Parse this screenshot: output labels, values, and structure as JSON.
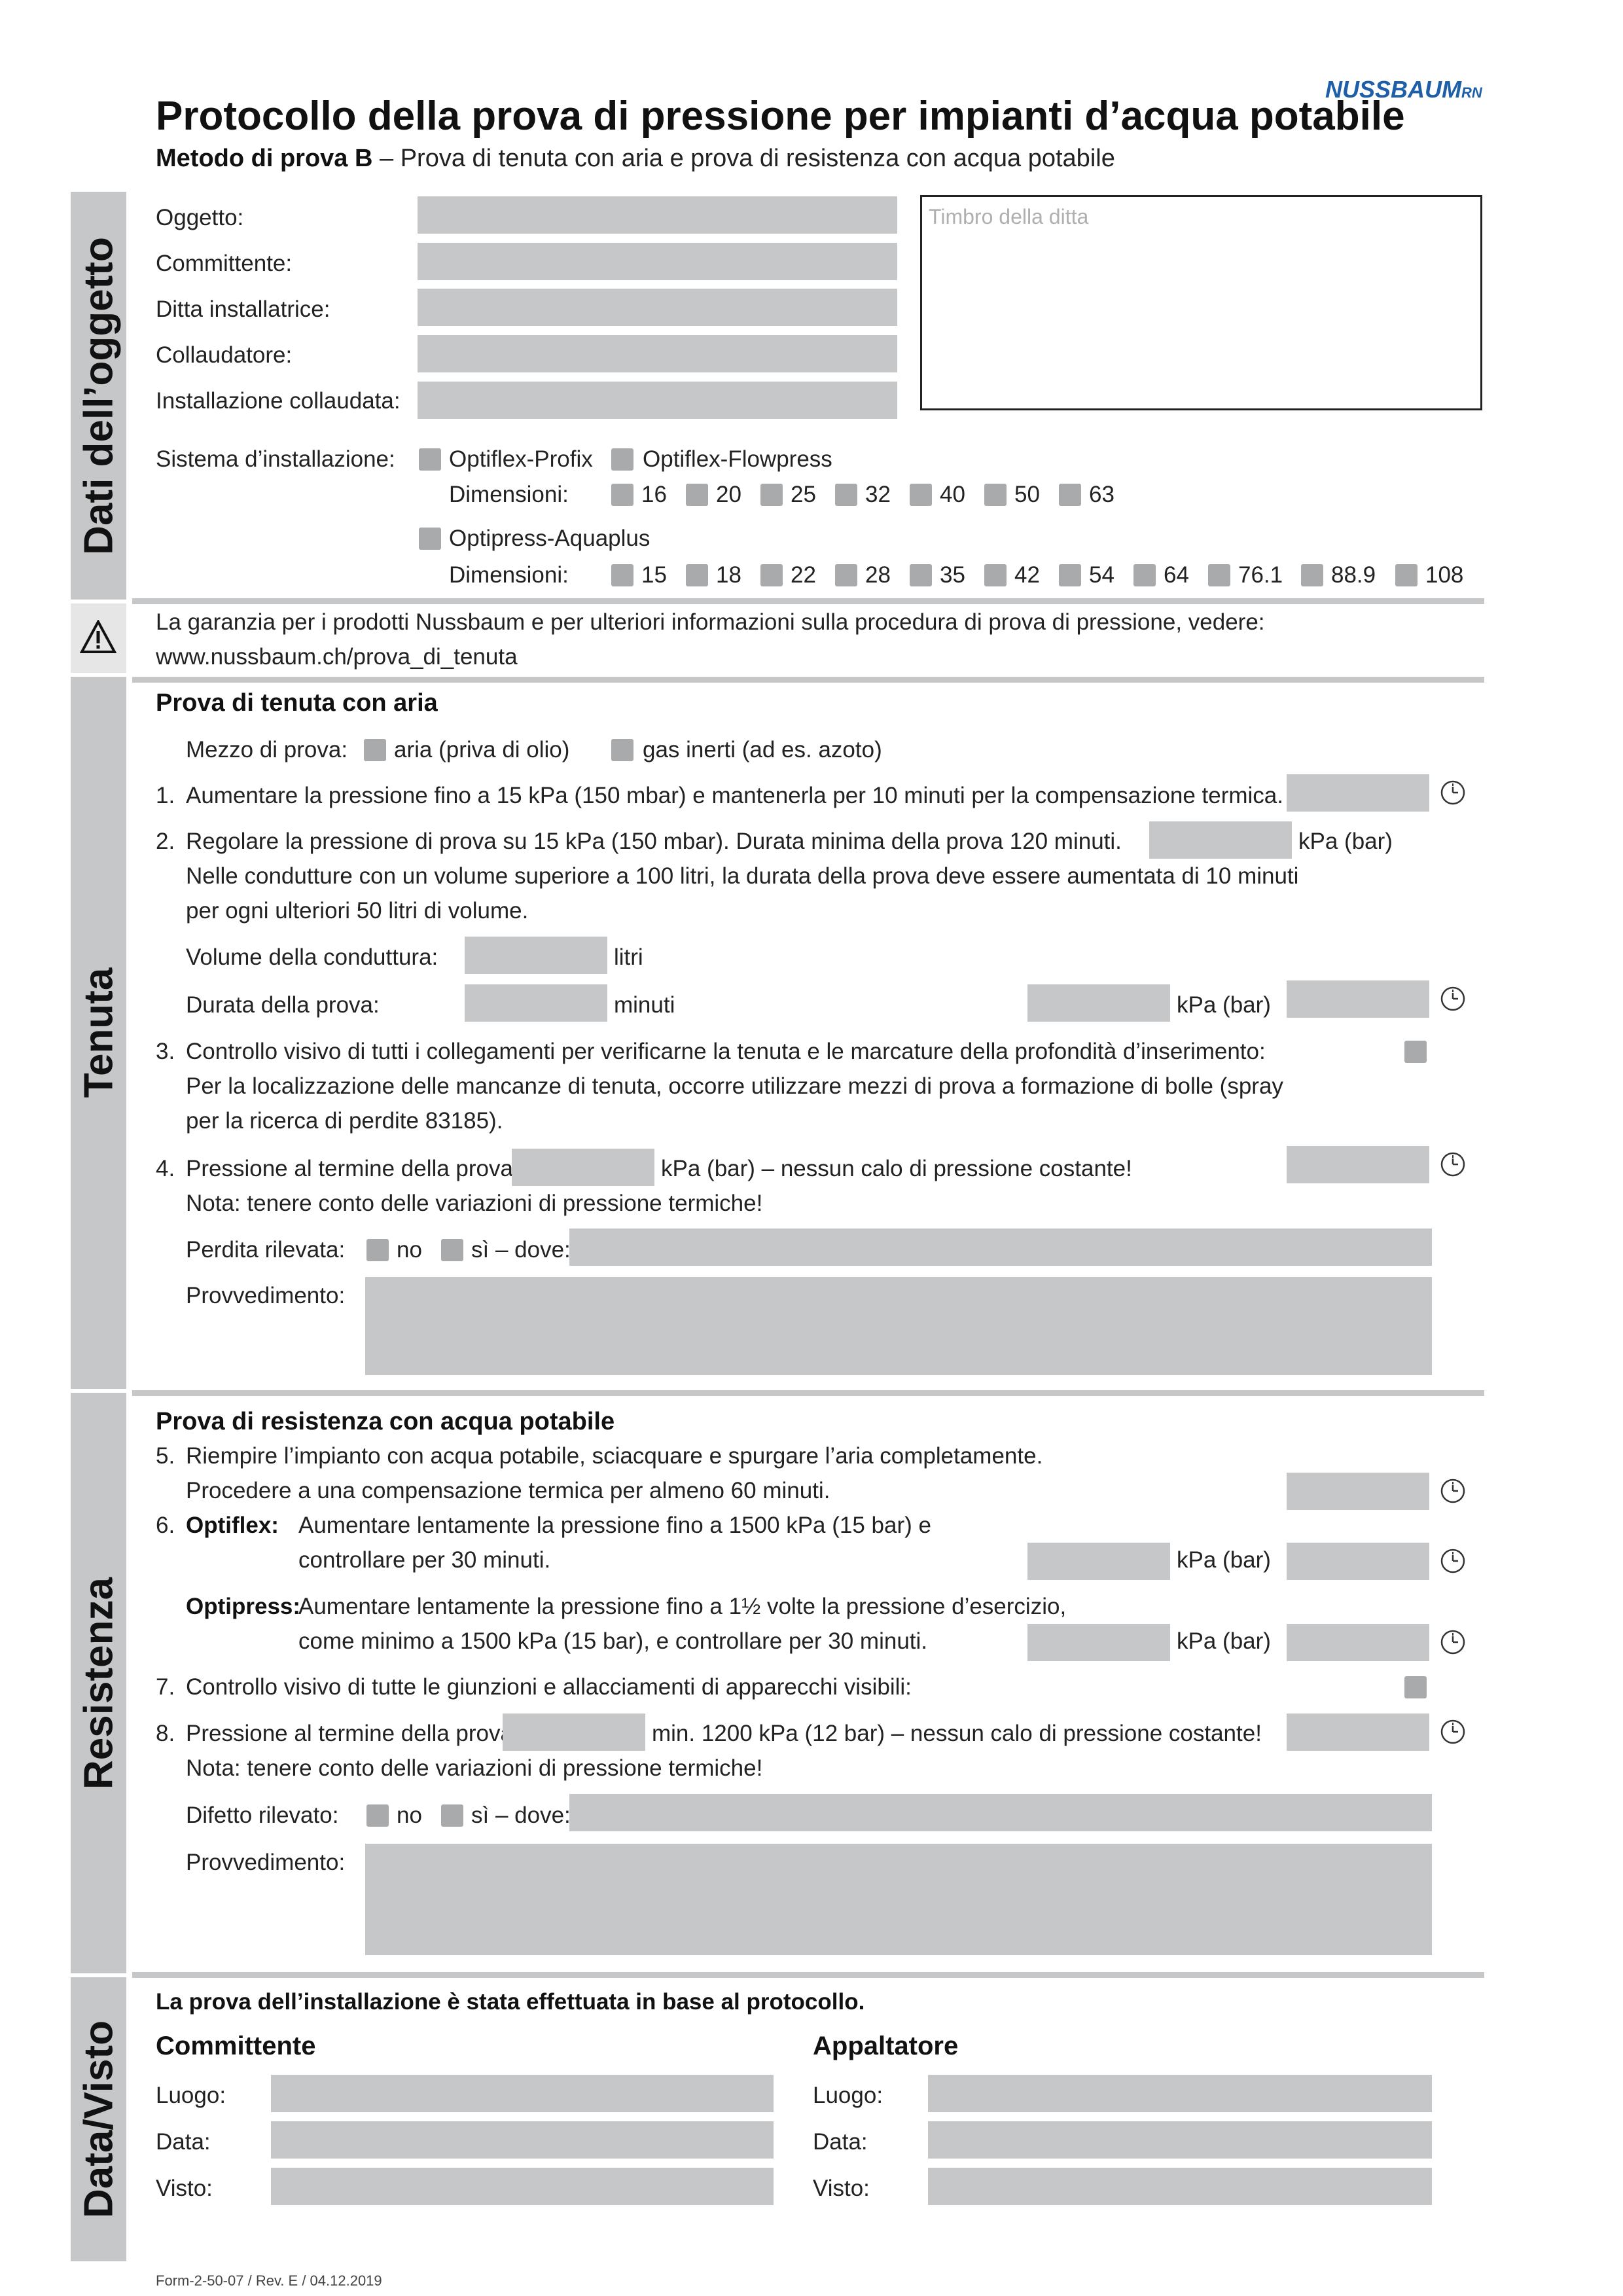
{
  "header": {
    "title": "Protocollo della prova di pressione per impianti d’acqua potabile",
    "subtitle_bold": "Metodo di prova B",
    "subtitle_rest": " – Prova di tenuta con aria e prova di resistenza con acqua potabile",
    "logo_text": "NUSSBAUM",
    "logo_suffix": "RN"
  },
  "sections": {
    "dati": "Dati dell’oggetto",
    "tenuta": "Tenuta",
    "resistenza": "Resistenza",
    "data_visto": "Data/Visto"
  },
  "dati": {
    "oggetto": "Oggetto:",
    "committente": "Committente:",
    "ditta": "Ditta installatrice:",
    "collaudatore": "Collaudatore:",
    "installazione": "Installazione collaudata:",
    "timbro": "Timbro della ditta",
    "sistema_label": "Sistema d’installazione:",
    "opt_profix": "Optiflex-Profix",
    "opt_flowpress": "Optiflex-Flowpress",
    "dimensioni": "Dimensioni:",
    "optiflex_sizes": [
      "16",
      "20",
      "25",
      "32",
      "40",
      "50",
      "63"
    ],
    "optipress": "Optipress-Aquaplus",
    "optipress_sizes": [
      "15",
      "18",
      "22",
      "28",
      "35",
      "42",
      "54",
      "64",
      "76.1",
      "88.9",
      "108"
    ]
  },
  "warning": {
    "icon": "warning-icon",
    "line1": "La garanzia per i prodotti Nussbaum e per ulteriori informazioni sulla procedura di prova di pressione, vedere:",
    "line2": "www.nussbaum.ch/prova_di_tenuta"
  },
  "tenuta": {
    "heading": "Prova di tenuta con aria",
    "mezzo_label": "Mezzo di prova:",
    "mezzo_aria": "aria (priva di olio)",
    "mezzo_gas": "gas inerti (ad es. azoto)",
    "s1_num": "1.",
    "s1": "Aumentare la pressione fino a 15 kPa (150 mbar) e mantenerla per 10 minuti per la compensazione termica.",
    "s2_num": "2.",
    "s2_l1": "Regolare la pressione di prova su 15 kPa (150 mbar). Durata minima della prova 120 minuti.",
    "s2_l2": "Nelle condutture con un volume superiore a 100 litri, la durata della prova deve essere aumentata di 10 minuti",
    "s2_l3": "per ogni ulteriori 50 litri di volume.",
    "kpa": "kPa (bar)",
    "volume_label": "Volume della conduttura:",
    "litri": "litri",
    "durata_label": "Durata della prova:",
    "minuti": "minuti",
    "s3_num": "3.",
    "s3_l1": "Controllo visivo di tutti i collegamenti per verificarne la tenuta e le marcature della profondità d’inserimento:",
    "s3_l2": "Per la localizzazione delle mancanze di tenuta, occorre utilizzare mezzi di prova a formazione di bolle (spray",
    "s3_l3": "per la ricerca di perdite 83185).",
    "s4_num": "4.",
    "s4_label": "Pressione al termine della prova:",
    "s4_rest": "kPa (bar) – nessun calo di pressione costante!",
    "s4_nota": "Nota: tenere conto delle variazioni di pressione termiche!",
    "perdita_label": "Perdita rilevata:",
    "no": "no",
    "si": "sì – dove:",
    "provvedimento": "Provvedimento:"
  },
  "resistenza": {
    "heading": "Prova di resistenza con acqua potabile",
    "s5_num": "5.",
    "s5_l1": "Riempire l’impianto con acqua potabile, sciacquare e spurgare l’aria completamente.",
    "s5_l2": "Procedere a una compensazione termica per almeno 60 minuti.",
    "s6_num": "6.",
    "optiflex": "Optiflex:",
    "s6_l1": "Aumentare lentamente la pressione fino a 1500 kPa (15 bar) e",
    "s6_l2": "controllare per 30 minuti.",
    "kpa": "kPa (bar)",
    "optipress": "Optipress:",
    "s6b_l1": "Aumentare lentamente la pressione fino a 1½ volte la pressione d’esercizio,",
    "s6b_l2": "come minimo a 1500 kPa (15 bar), e controllare per 30 minuti.",
    "s7_num": "7.",
    "s7": "Controllo visivo di tutte le giunzioni e allacciamenti di apparecchi visibili:",
    "s8_num": "8.",
    "s8_label": "Pressione al termine della prova:",
    "s8_rest": "min. 1200 kPa (12 bar) – nessun calo di pressione costante!",
    "s8_nota": "Nota: tenere conto delle variazioni di pressione termiche!",
    "difetto_label": "Difetto rilevato:",
    "no": "no",
    "si": "sì – dove:",
    "provvedimento": "Provvedimento:"
  },
  "firma": {
    "heading": "La prova dell’installazione è stata effettuata in base al protocollo.",
    "committente": "Committente",
    "appaltatore": "Appaltatore",
    "luogo": "Luogo:",
    "data": "Data:",
    "visto": "Visto:"
  },
  "footer": "Form-2-50-07 / Rev. E / 04.12.2019"
}
